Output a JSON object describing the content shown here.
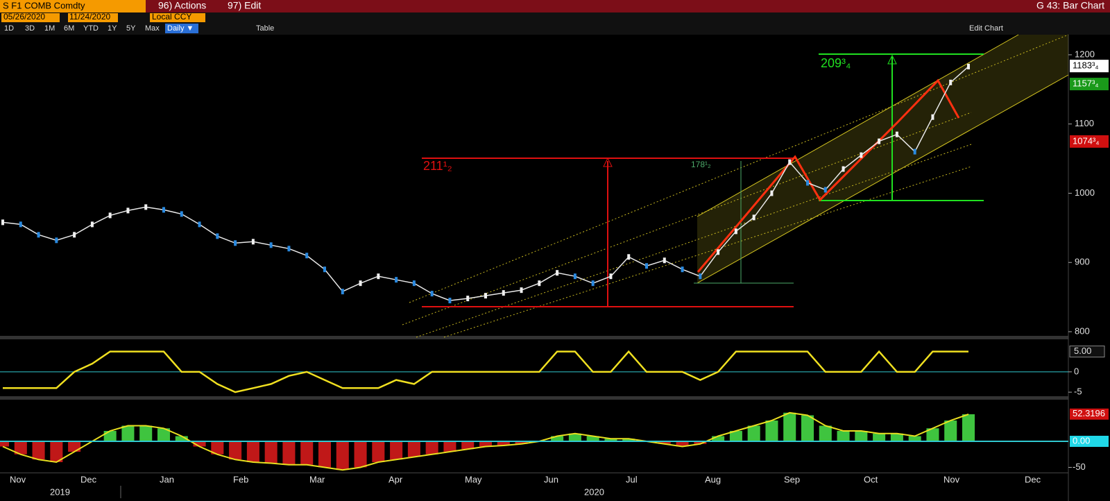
{
  "header": {
    "ticker": "S F1 COMB Comdty",
    "actions": "96) Actions",
    "edit": "97) Edit",
    "page": "G 43: Bar Chart"
  },
  "toolbar": {
    "start": "05/26/2020",
    "end": "11/24/2020",
    "currency": "Local CCY",
    "ranges": [
      "1D",
      "3D",
      "1M",
      "6M",
      "YTD",
      "1Y",
      "5Y",
      "Max"
    ],
    "frequency": "Daily ▼",
    "table": "Table",
    "edit_chart": "Edit Chart"
  },
  "chart": {
    "type": "line",
    "months": [
      "Nov",
      "Dec",
      "Jan",
      "Feb",
      "Mar",
      "Apr",
      "May",
      "Jun",
      "Jul",
      "Aug",
      "Sep",
      "Oct",
      "Nov",
      "Dec"
    ],
    "years": [
      "2019",
      "2020"
    ],
    "price": {
      "color": "#e8e8e8",
      "ylim": [
        797,
        1229
      ],
      "yticks": [
        800,
        900,
        1000,
        1100,
        1200
      ],
      "values": [
        958,
        955,
        940,
        932,
        940,
        955,
        968,
        975,
        980,
        976,
        970,
        955,
        938,
        928,
        930,
        925,
        920,
        910,
        890,
        858,
        870,
        880,
        875,
        870,
        855,
        845,
        848,
        852,
        856,
        860,
        870,
        885,
        880,
        870,
        880,
        908,
        895,
        903,
        890,
        880,
        915,
        945,
        965,
        1000,
        1045,
        1015,
        1005,
        1035,
        1055,
        1075,
        1085,
        1060,
        1110,
        1160,
        1183
      ],
      "tags": [
        {
          "value": 1183.75,
          "label": "1183³₄",
          "color": "#ffffff"
        },
        {
          "value": 1157.75,
          "label": "1157³₄",
          "color": "#1a9a1a"
        },
        {
          "value": 1074.75,
          "label": "1074³₄",
          "color": "#d01010"
        }
      ],
      "annotations": [
        "209³₄",
        "211¹₂",
        "178¹₂"
      ]
    },
    "oscillator": {
      "color": "#f0e020",
      "ylim": [
        -6,
        8
      ],
      "yticks": [
        {
          "value": 5,
          "label": "5.00"
        },
        0,
        -5
      ],
      "values": [
        -4,
        -4,
        -4,
        -4,
        0,
        2,
        5,
        5,
        5,
        5,
        0,
        0,
        -3,
        -5,
        -4,
        -3,
        -1,
        0,
        -2,
        -4,
        -4,
        -4,
        -2,
        -3,
        0,
        0,
        0,
        0,
        0,
        0,
        0,
        5,
        5,
        0,
        0,
        5,
        0,
        0,
        0,
        -2,
        0,
        5,
        5,
        5,
        5,
        5,
        0,
        0,
        0,
        5,
        0,
        0,
        5,
        5,
        5
      ]
    },
    "macd": {
      "up_color": "#3fc43f",
      "down_color": "#c01818",
      "line_color": "#e8e020",
      "ylim": [
        -60,
        80
      ],
      "yticks": [
        {
          "value": 52.3196,
          "label": "52.3196"
        },
        {
          "value": 0,
          "label": "0.00"
        },
        -50
      ],
      "values": [
        -10,
        -25,
        -35,
        -40,
        -20,
        0,
        20,
        30,
        30,
        25,
        10,
        -10,
        -25,
        -35,
        -40,
        -42,
        -45,
        -45,
        -50,
        -55,
        -50,
        -40,
        -35,
        -30,
        -25,
        -20,
        -15,
        -10,
        -8,
        -5,
        0,
        10,
        15,
        10,
        5,
        5,
        0,
        -5,
        -10,
        -5,
        10,
        20,
        30,
        40,
        55,
        50,
        30,
        20,
        20,
        15,
        15,
        10,
        25,
        40,
        52
      ]
    }
  }
}
